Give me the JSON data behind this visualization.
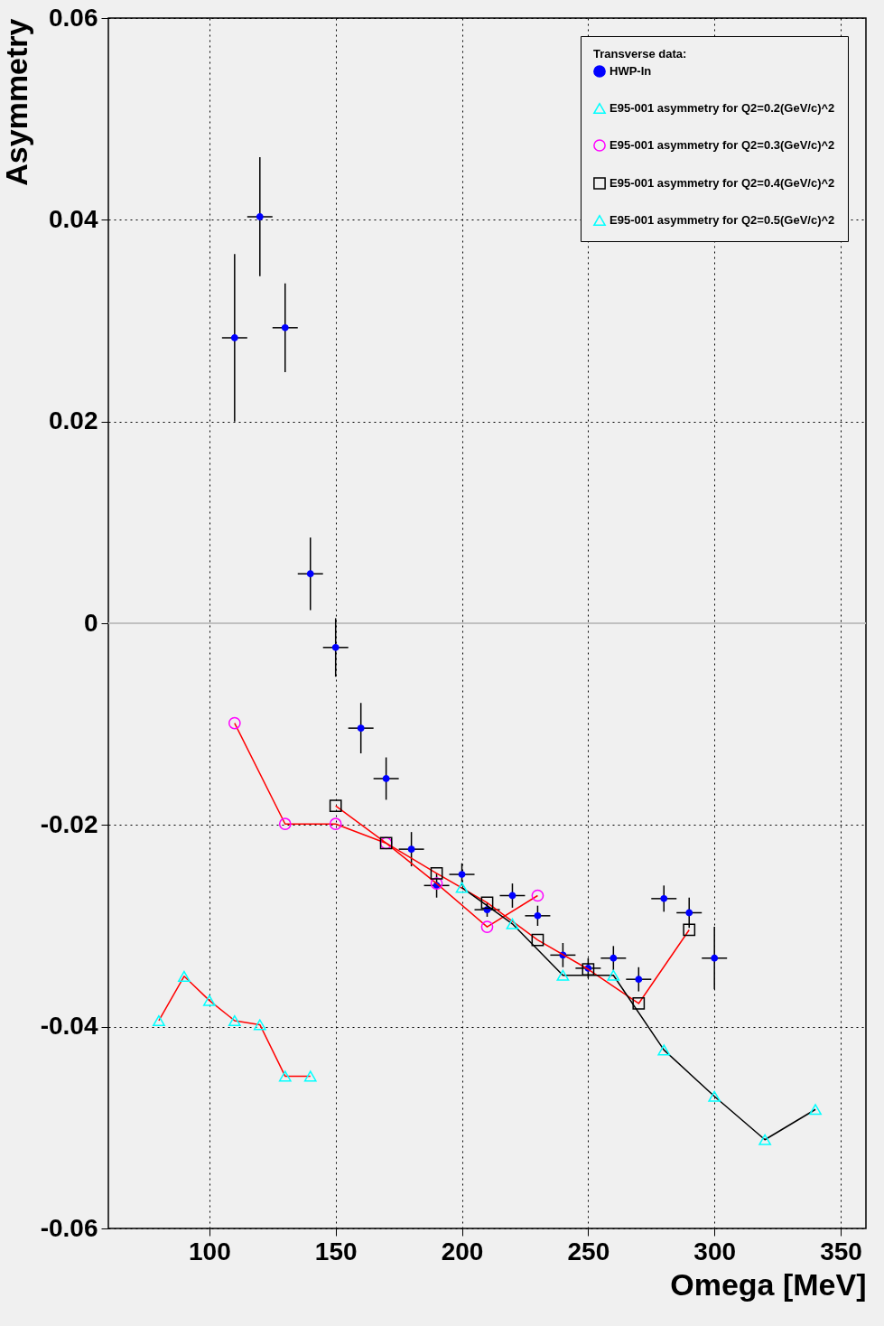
{
  "chart_data": {
    "type": "line",
    "xlabel": "Omega [MeV]",
    "ylabel": "Asymmetry",
    "legend_title": "Transverse data:",
    "legend": "top right",
    "grid": true,
    "xlim": [
      60,
      360
    ],
    "xticks": [
      100,
      150,
      200,
      250,
      300,
      350
    ],
    "ylim": [
      -0.06,
      0.06
    ],
    "yticks": [
      -0.06,
      -0.04,
      -0.02,
      0,
      0.02,
      0.04,
      0.06
    ],
    "ref_lines": [
      {
        "axis": "y",
        "value": 0,
        "color": "#c0c0c0"
      }
    ],
    "series": [
      {
        "name": "HWP-In",
        "type": "scatter",
        "color": "#0000ff",
        "marker": "circle",
        "x": [
          110,
          120,
          130,
          140,
          150,
          160,
          170,
          180,
          190,
          200,
          210,
          220,
          230,
          240,
          250,
          260,
          270,
          280,
          290,
          300
        ],
        "values": [
          0.0283,
          0.0403,
          0.0293,
          0.0049,
          -0.0024,
          -0.0104,
          -0.0154,
          -0.0224,
          -0.026,
          -0.0249,
          -0.0284,
          -0.027,
          -0.029,
          -0.0329,
          -0.0342,
          -0.0332,
          -0.0353,
          -0.0273,
          -0.0287,
          -0.0332
        ],
        "errors": [
          0.0083,
          0.0059,
          0.0044,
          0.0036,
          0.0029,
          0.0025,
          0.0021,
          0.0017,
          0.0012,
          0.0011,
          0.0007,
          0.0012,
          0.001,
          0.0012,
          0.001,
          0.0012,
          0.0012,
          0.0013,
          0.0015,
          0.0031
        ],
        "xerrors": [
          5,
          5,
          5,
          5,
          5,
          5,
          5,
          5,
          5,
          5,
          5,
          5,
          5,
          5,
          5,
          5,
          5,
          5,
          5,
          5
        ]
      },
      {
        "name": "E95-001 asymmetry for Q2=0.2(GeV/c)^2",
        "color": "#ff0000",
        "marker": "triangle",
        "x": [
          80,
          90,
          100,
          110,
          120,
          130,
          140
        ],
        "values": [
          -0.0394,
          -0.035,
          -0.0374,
          -0.0394,
          -0.0398,
          -0.0449,
          -0.0449
        ],
        "colors": [
          "#00ffff",
          "#00ffff",
          "#00ffff",
          "#00ffff",
          "#00ffff",
          "#00ffff",
          "#00ffff"
        ]
      },
      {
        "name": "E95-001 asymmetry for Q2=0.3(GeV/c)^2",
        "color": "#ff0000",
        "marker": "circle",
        "x": [
          110,
          130,
          150,
          170,
          190,
          210,
          230
        ],
        "values": [
          -0.0099,
          -0.0199,
          -0.0199,
          -0.0218,
          -0.0258,
          -0.0301,
          -0.027
        ],
        "colors": [
          "#ff00ff",
          "#ff00ff",
          "#ff00ff",
          "#ff00ff",
          "#ff00ff",
          "#ff00ff",
          "#ff00ff"
        ]
      },
      {
        "name": "E95-001 asymmetry for Q2=0.4(GeV/c)^2",
        "color": "#ff0000",
        "marker": "square",
        "x": [
          150,
          170,
          190,
          210,
          230,
          250,
          270,
          290
        ],
        "values": [
          -0.0181,
          -0.0218,
          -0.0248,
          -0.0277,
          -0.0314,
          -0.0343,
          -0.0377,
          -0.0304
        ],
        "colors": [
          "#000000",
          "#000000",
          "#000000",
          "#000000",
          "#000000",
          "#000000",
          "#000000",
          "#000000"
        ]
      },
      {
        "name": "E95-001 asymmetry for Q2=0.5(GeV/c)^2",
        "color": "#000000",
        "marker": "triangle",
        "x": [
          200,
          220,
          240,
          260,
          280,
          300,
          320,
          340
        ],
        "values": [
          -0.0262,
          -0.0298,
          -0.0349,
          -0.0349,
          -0.0423,
          -0.0469,
          -0.0512,
          -0.0482
        ],
        "colors": [
          "#00ffff",
          "#00ffff",
          "#00ffff",
          "#00ffff",
          "#00ffff",
          "#00ffff",
          "#00ffff",
          "#00ffff"
        ]
      }
    ]
  }
}
